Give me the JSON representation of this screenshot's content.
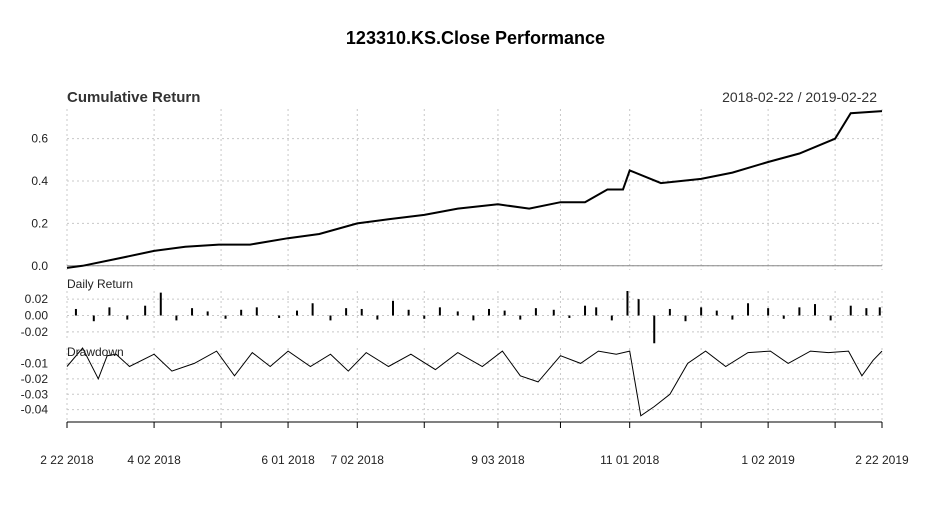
{
  "title": "123310.KS.Close Performance",
  "date_range": "2018-02-22 / 2019-02-22",
  "colors": {
    "line": "#000000",
    "grid": "#c8c8c8",
    "axis": "#000000",
    "text": "#222222"
  },
  "chart_data": [
    {
      "type": "line",
      "title": "Cumulative Return",
      "ylim": [
        -0.02,
        0.74
      ],
      "yticks": [
        0.0,
        0.2,
        0.4,
        0.6
      ],
      "ytick_labels": [
        "0.0",
        "0.2",
        "0.4",
        "0.6"
      ],
      "grid": true,
      "x": [
        "2018-02-22",
        "2018-03-01",
        "2018-03-15",
        "2018-04-02",
        "2018-04-16",
        "2018-05-01",
        "2018-05-15",
        "2018-06-01",
        "2018-06-15",
        "2018-07-02",
        "2018-07-16",
        "2018-08-01",
        "2018-08-16",
        "2018-09-03",
        "2018-09-17",
        "2018-10-01",
        "2018-10-12",
        "2018-10-22",
        "2018-10-29",
        "2018-11-01",
        "2018-11-15",
        "2018-12-03",
        "2018-12-17",
        "2019-01-02",
        "2019-01-16",
        "2019-02-01",
        "2019-02-08",
        "2019-02-22"
      ],
      "values": [
        -0.01,
        0.0,
        0.03,
        0.07,
        0.09,
        0.1,
        0.1,
        0.13,
        0.15,
        0.2,
        0.22,
        0.24,
        0.27,
        0.29,
        0.27,
        0.3,
        0.3,
        0.36,
        0.36,
        0.45,
        0.39,
        0.41,
        0.44,
        0.49,
        0.53,
        0.6,
        0.72,
        0.73
      ]
    },
    {
      "type": "bar",
      "title": "Daily Return",
      "ylim": [
        -0.03,
        0.03
      ],
      "yticks": [
        0.02,
        0.0,
        -0.02
      ],
      "ytick_labels": [
        "0.02",
        "0.00",
        "-0.02"
      ],
      "grid": true,
      "x": [
        "2018-02-26",
        "2018-03-06",
        "2018-03-13",
        "2018-03-21",
        "2018-03-29",
        "2018-04-05",
        "2018-04-12",
        "2018-04-19",
        "2018-04-26",
        "2018-05-04",
        "2018-05-11",
        "2018-05-18",
        "2018-05-28",
        "2018-06-05",
        "2018-06-12",
        "2018-06-20",
        "2018-06-27",
        "2018-07-04",
        "2018-07-11",
        "2018-07-18",
        "2018-07-25",
        "2018-08-01",
        "2018-08-08",
        "2018-08-16",
        "2018-08-23",
        "2018-08-30",
        "2018-09-06",
        "2018-09-13",
        "2018-09-20",
        "2018-09-28",
        "2018-10-05",
        "2018-10-12",
        "2018-10-17",
        "2018-10-24",
        "2018-10-31",
        "2018-11-05",
        "2018-11-12",
        "2018-11-19",
        "2018-11-26",
        "2018-12-03",
        "2018-12-10",
        "2018-12-17",
        "2018-12-24",
        "2019-01-02",
        "2019-01-09",
        "2019-01-16",
        "2019-01-23",
        "2019-01-30",
        "2019-02-08",
        "2019-02-15",
        "2019-02-21"
      ],
      "values": [
        0.008,
        -0.007,
        0.01,
        -0.005,
        0.012,
        0.028,
        -0.006,
        0.009,
        0.005,
        -0.004,
        0.007,
        0.01,
        -0.003,
        0.006,
        0.015,
        -0.006,
        0.009,
        0.008,
        -0.005,
        0.018,
        0.007,
        -0.004,
        0.01,
        0.005,
        -0.006,
        0.008,
        0.006,
        -0.005,
        0.009,
        0.007,
        -0.003,
        0.012,
        0.01,
        -0.006,
        0.03,
        0.02,
        -0.034,
        0.008,
        -0.007,
        0.01,
        0.006,
        -0.005,
        0.015,
        0.009,
        -0.004,
        0.01,
        0.014,
        -0.006,
        0.012,
        0.009,
        0.01
      ]
    },
    {
      "type": "line",
      "title": "Drawdown",
      "ylim": [
        -0.048,
        0.0
      ],
      "yticks": [
        -0.01,
        -0.02,
        -0.03,
        -0.04
      ],
      "ytick_labels": [
        "-0.01",
        "-0.02",
        "-0.03",
        "-0.04"
      ],
      "grid": true,
      "x": [
        "2018-02-22",
        "2018-03-01",
        "2018-03-08",
        "2018-03-12",
        "2018-03-16",
        "2018-03-22",
        "2018-04-02",
        "2018-04-10",
        "2018-04-20",
        "2018-04-30",
        "2018-05-08",
        "2018-05-16",
        "2018-05-24",
        "2018-06-01",
        "2018-06-11",
        "2018-06-20",
        "2018-06-28",
        "2018-07-06",
        "2018-07-16",
        "2018-07-26",
        "2018-08-06",
        "2018-08-16",
        "2018-08-27",
        "2018-09-05",
        "2018-09-13",
        "2018-09-21",
        "2018-10-01",
        "2018-10-10",
        "2018-10-18",
        "2018-10-26",
        "2018-11-01",
        "2018-11-06",
        "2018-11-12",
        "2018-11-19",
        "2018-11-27",
        "2018-12-05",
        "2018-12-14",
        "2018-12-24",
        "2019-01-03",
        "2019-01-11",
        "2019-01-21",
        "2019-01-29",
        "2019-02-07",
        "2019-02-13",
        "2019-02-18",
        "2019-02-22"
      ],
      "values": [
        -0.012,
        0.0,
        -0.02,
        -0.005,
        -0.004,
        -0.012,
        -0.004,
        -0.015,
        -0.01,
        -0.002,
        -0.018,
        -0.003,
        -0.012,
        -0.002,
        -0.012,
        -0.004,
        -0.015,
        -0.003,
        -0.012,
        -0.004,
        -0.014,
        -0.003,
        -0.012,
        -0.002,
        -0.018,
        -0.022,
        -0.005,
        -0.01,
        -0.002,
        -0.004,
        -0.002,
        -0.044,
        -0.038,
        -0.03,
        -0.01,
        -0.002,
        -0.012,
        -0.003,
        -0.002,
        -0.01,
        -0.002,
        -0.003,
        -0.002,
        -0.018,
        -0.008,
        -0.002
      ]
    }
  ],
  "x_axis": {
    "start": "2018-02-22",
    "end": "2019-02-22",
    "tick_dates": [
      "2018-02-22",
      "2018-04-02",
      "2018-05-02",
      "2018-06-01",
      "2018-07-02",
      "2018-08-01",
      "2018-09-03",
      "2018-10-01",
      "2018-11-01",
      "2018-12-03",
      "2019-01-02",
      "2019-02-01",
      "2019-02-22"
    ],
    "labeled_dates": [
      "2018-02-22",
      "2018-04-02",
      "2018-06-01",
      "2018-07-02",
      "2018-09-03",
      "2018-11-01",
      "2019-01-02",
      "2019-02-22"
    ],
    "labels": [
      "2 22 2018",
      "4 02 2018",
      "6 01 2018",
      "7 02 2018",
      "9 03 2018",
      "11 01 2018",
      "1 02 2019",
      "2 22 2019"
    ]
  }
}
